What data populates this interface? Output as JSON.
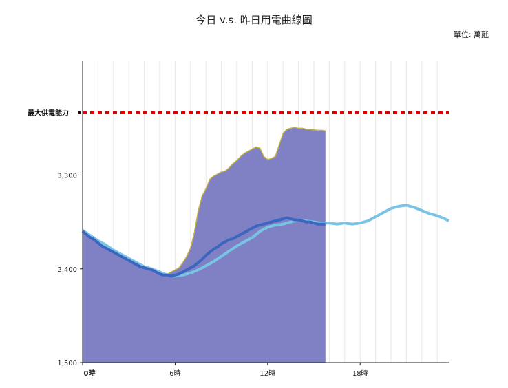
{
  "header": {
    "title": "今日 v.s. 昨日用電曲線圖",
    "unit": "單位: 萬瓩"
  },
  "chart_data": {
    "type": "area",
    "ylim": [
      1500,
      4400
    ],
    "xlim": [
      0,
      23.75
    ],
    "y_ticks": [
      1500,
      2400,
      3300
    ],
    "y_tick_labels": [
      "1,500",
      "2,400",
      "3,300"
    ],
    "x_ticks": [
      0,
      6,
      12,
      18
    ],
    "x_tick_labels": [
      "0時",
      "6時",
      "12時",
      "18時"
    ],
    "capacity": {
      "label": "最大供電能力",
      "value": 3900,
      "color": "#dd0000"
    },
    "colors": {
      "today_fill": "#7f81c4",
      "today_edge": "#c8b43c",
      "today_load": "#3a66c0",
      "yesterday": "#79c3e4"
    },
    "series": [
      {
        "x": [
          0,
          0.25,
          0.5,
          0.75,
          1,
          1.25,
          1.5,
          1.75,
          2,
          2.25,
          2.5,
          2.75,
          3,
          3.25,
          3.5,
          3.75,
          4,
          4.25,
          4.5,
          4.75,
          5,
          5.25,
          5.5,
          5.75,
          6,
          6.25,
          6.5,
          6.75,
          7,
          7.25,
          7.5,
          7.75,
          8,
          8.25,
          8.5,
          8.75,
          9,
          9.25,
          9.5,
          9.75,
          10,
          10.25,
          10.5,
          10.75,
          11,
          11.25,
          11.5,
          11.75,
          12,
          12.25,
          12.5,
          12.75,
          13,
          13.25,
          13.5,
          13.75,
          14,
          14.25,
          14.5,
          14.75,
          15,
          15.25,
          15.5,
          15.75
        ],
        "values": [
          2760,
          2730,
          2700,
          2680,
          2640,
          2620,
          2600,
          2580,
          2560,
          2540,
          2520,
          2500,
          2480,
          2460,
          2440,
          2430,
          2420,
          2410,
          2390,
          2370,
          2350,
          2340,
          2350,
          2370,
          2390,
          2410,
          2460,
          2520,
          2600,
          2750,
          2960,
          3100,
          3170,
          3260,
          3290,
          3310,
          3330,
          3340,
          3370,
          3410,
          3440,
          3480,
          3510,
          3530,
          3550,
          3570,
          3560,
          3480,
          3450,
          3460,
          3480,
          3590,
          3700,
          3740,
          3750,
          3760,
          3750,
          3750,
          3740,
          3740,
          3735,
          3730,
          3730,
          3725
        ]
      },
      {
        "x": [
          0,
          0.25,
          0.5,
          0.75,
          1,
          1.25,
          1.5,
          1.75,
          2,
          2.25,
          2.5,
          2.75,
          3,
          3.25,
          3.5,
          3.75,
          4,
          4.25,
          4.5,
          4.75,
          5,
          5.25,
          5.5,
          5.75,
          6,
          6.25,
          6.5,
          6.75,
          7,
          7.25,
          7.5,
          7.75,
          8,
          8.25,
          8.5,
          8.75,
          9,
          9.25,
          9.5,
          9.75,
          10,
          10.25,
          10.5,
          10.75,
          11,
          11.25,
          11.5,
          11.75,
          12,
          12.25,
          12.5,
          12.75,
          13,
          13.25,
          13.5,
          13.75,
          14,
          14.25,
          14.5,
          14.75,
          15,
          15.25,
          15.5,
          15.75
        ],
        "values": [
          2760,
          2730,
          2700,
          2680,
          2650,
          2620,
          2600,
          2580,
          2560,
          2540,
          2520,
          2500,
          2480,
          2460,
          2440,
          2420,
          2410,
          2400,
          2390,
          2370,
          2350,
          2340,
          2340,
          2330,
          2340,
          2350,
          2370,
          2390,
          2410,
          2430,
          2460,
          2490,
          2530,
          2560,
          2590,
          2610,
          2640,
          2660,
          2680,
          2690,
          2710,
          2730,
          2750,
          2770,
          2790,
          2810,
          2820,
          2830,
          2840,
          2850,
          2860,
          2870,
          2880,
          2890,
          2880,
          2870,
          2870,
          2860,
          2850,
          2850,
          2840,
          2830,
          2830,
          2830
        ]
      },
      {
        "x": [
          0,
          0.5,
          1,
          1.5,
          2,
          2.5,
          3,
          3.5,
          4,
          4.5,
          5,
          5.5,
          6,
          6.5,
          7,
          7.5,
          8,
          8.5,
          9,
          9.5,
          10,
          10.5,
          11,
          11.5,
          12,
          12.5,
          13,
          13.5,
          14,
          14.5,
          15,
          15.5,
          16,
          16.5,
          17,
          17.5,
          18,
          18.5,
          19,
          19.5,
          20,
          20.5,
          21,
          21.5,
          22,
          22.5,
          23,
          23.5,
          23.75
        ],
        "values": [
          2770,
          2720,
          2670,
          2630,
          2580,
          2540,
          2500,
          2460,
          2420,
          2400,
          2370,
          2340,
          2330,
          2340,
          2360,
          2390,
          2430,
          2470,
          2520,
          2570,
          2620,
          2660,
          2700,
          2760,
          2800,
          2820,
          2830,
          2850,
          2870,
          2860,
          2850,
          2840,
          2840,
          2830,
          2840,
          2830,
          2840,
          2860,
          2900,
          2940,
          2980,
          3000,
          3010,
          2990,
          2960,
          2930,
          2910,
          2880,
          2860
        ]
      }
    ]
  }
}
